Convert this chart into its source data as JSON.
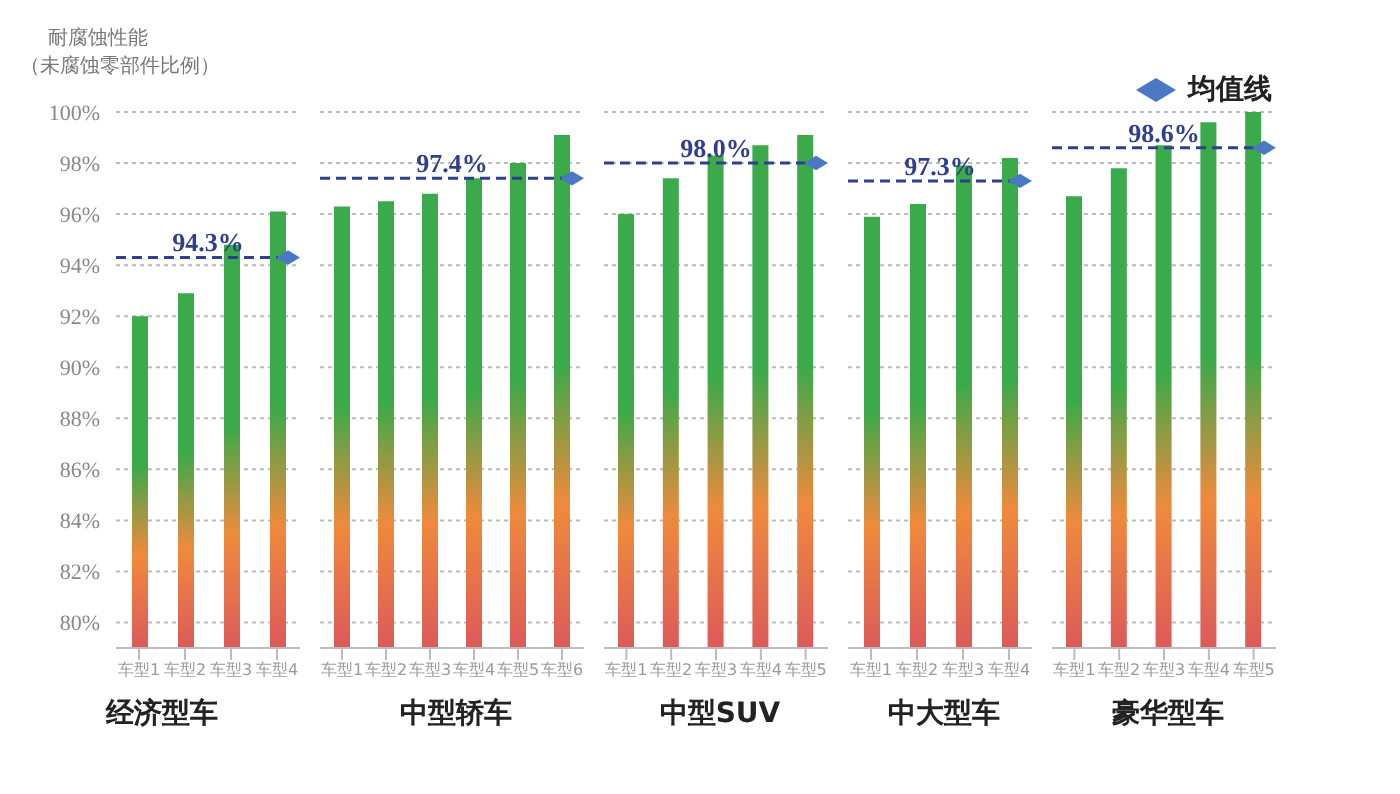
{
  "chart_data": [
    {
      "type": "bar",
      "title": "经济型车",
      "ylabel": "耐腐蚀性能（未腐蚀零部件比例）",
      "categories": [
        "车型1",
        "车型2",
        "车型3",
        "车型4"
      ],
      "values": [
        92.0,
        92.9,
        94.8,
        96.1
      ],
      "color": "#3aaa4a",
      "ylim": [
        79,
        100
      ],
      "yticks": [
        {
          "value": 80,
          "label": "80%"
        },
        {
          "value": 82,
          "label": "82%"
        },
        {
          "value": 84,
          "label": "84%"
        },
        {
          "value": 86,
          "label": "86%"
        },
        {
          "value": 88,
          "label": "88%"
        },
        {
          "value": 90,
          "label": "90%"
        },
        {
          "value": 92,
          "label": "92%"
        },
        {
          "value": 94,
          "label": "94%"
        },
        {
          "value": 96,
          "label": "96%"
        },
        {
          "value": 98,
          "label": "98%"
        },
        {
          "value": 100,
          "label": "100%"
        }
      ],
      "grid": "y",
      "ref_lines": [
        {
          "axis": "y",
          "value": 94.3,
          "label": "94.3%",
          "color": "#2e3f8f",
          "line_style": "dashed"
        }
      ]
    },
    {
      "type": "bar",
      "title": "中型轿车",
      "categories": [
        "车型1",
        "车型2",
        "车型3",
        "车型4",
        "车型5",
        "车型6"
      ],
      "values": [
        96.3,
        96.5,
        96.8,
        97.4,
        98.0,
        99.1
      ],
      "color": "#3aaa4a",
      "ylim": [
        79,
        100
      ],
      "yticks": [
        80,
        82,
        84,
        86,
        88,
        90,
        92,
        94,
        96,
        98,
        100
      ],
      "grid": "y",
      "tick_labels": "x",
      "ref_lines": [
        {
          "axis": "y",
          "value": 97.4,
          "label": "97.4%",
          "color": "#2e3f8f",
          "line_style": "dashed"
        }
      ]
    },
    {
      "type": "bar",
      "title": "中型SUV",
      "categories": [
        "车型1",
        "车型2",
        "车型3",
        "车型4",
        "车型5"
      ],
      "values": [
        96.0,
        97.4,
        98.3,
        98.7,
        99.1
      ],
      "color": "#3aaa4a",
      "ylim": [
        79,
        100
      ],
      "yticks": [
        80,
        82,
        84,
        86,
        88,
        90,
        92,
        94,
        96,
        98,
        100
      ],
      "grid": "y",
      "tick_labels": "x",
      "ref_lines": [
        {
          "axis": "y",
          "value": 98.0,
          "label": "98.0%",
          "color": "#2e3f8f",
          "line_style": "dashed"
        }
      ]
    },
    {
      "type": "bar",
      "title": "中大型车",
      "categories": [
        "车型1",
        "车型2",
        "车型3",
        "车型4"
      ],
      "values": [
        95.9,
        96.4,
        97.9,
        98.2
      ],
      "color": "#3aaa4a",
      "ylim": [
        79,
        100
      ],
      "yticks": [
        80,
        82,
        84,
        86,
        88,
        90,
        92,
        94,
        96,
        98,
        100
      ],
      "grid": "y",
      "tick_labels": "x",
      "ref_lines": [
        {
          "axis": "y",
          "value": 97.3,
          "label": "97.3%",
          "color": "#2e3f8f",
          "line_style": "dashed"
        }
      ]
    },
    {
      "type": "bar",
      "title": "豪华型车",
      "categories": [
        "车型1",
        "车型2",
        "车型3",
        "车型4",
        "车型5"
      ],
      "values": [
        96.7,
        97.8,
        98.7,
        99.6,
        100.0
      ],
      "color": "#3aaa4a",
      "ylim": [
        79,
        100
      ],
      "yticks": [
        80,
        82,
        84,
        86,
        88,
        90,
        92,
        94,
        96,
        98,
        100
      ],
      "grid": "y",
      "tick_labels": "x",
      "ref_lines": [
        {
          "axis": "y",
          "value": 98.6,
          "label": "98.6%",
          "color": "#2e3f8f",
          "line_style": "dashed"
        }
      ],
      "annotations": [
        "均值线"
      ]
    }
  ]
}
